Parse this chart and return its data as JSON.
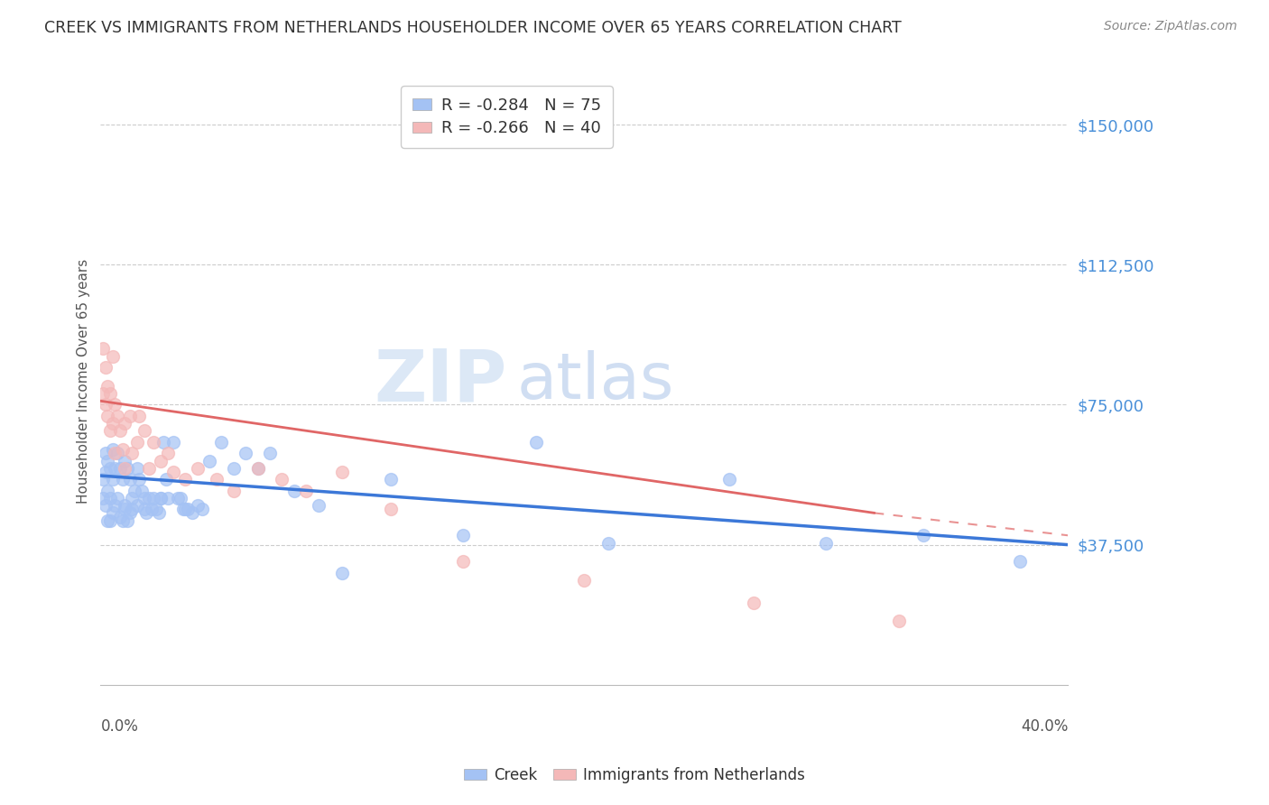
{
  "title": "CREEK VS IMMIGRANTS FROM NETHERLANDS HOUSEHOLDER INCOME OVER 65 YEARS CORRELATION CHART",
  "source": "Source: ZipAtlas.com",
  "ylabel": "Householder Income Over 65 years",
  "yticks": [
    0,
    37500,
    75000,
    112500,
    150000
  ],
  "ytick_labels": [
    "",
    "$37,500",
    "$75,000",
    "$112,500",
    "$150,000"
  ],
  "xlim": [
    0.0,
    0.4
  ],
  "ylim": [
    0,
    162500
  ],
  "legend_creek": "R = -0.284   N = 75",
  "legend_netherlands": "R = -0.266   N = 40",
  "creek_color": "#a4c2f4",
  "netherlands_color": "#f4b8b8",
  "creek_line_color": "#3c78d8",
  "netherlands_line_color": "#e06666",
  "watermark_zip": "ZIP",
  "watermark_atlas": "atlas",
  "creek_scatter_x": [
    0.001,
    0.001,
    0.002,
    0.002,
    0.002,
    0.003,
    0.003,
    0.003,
    0.004,
    0.004,
    0.004,
    0.005,
    0.005,
    0.005,
    0.006,
    0.006,
    0.007,
    0.007,
    0.008,
    0.008,
    0.009,
    0.009,
    0.01,
    0.01,
    0.011,
    0.011,
    0.012,
    0.012,
    0.013,
    0.014,
    0.015,
    0.015,
    0.016,
    0.017,
    0.018,
    0.019,
    0.02,
    0.021,
    0.022,
    0.023,
    0.024,
    0.025,
    0.026,
    0.027,
    0.028,
    0.03,
    0.032,
    0.033,
    0.034,
    0.036,
    0.038,
    0.04,
    0.042,
    0.045,
    0.05,
    0.055,
    0.06,
    0.065,
    0.07,
    0.08,
    0.09,
    0.1,
    0.12,
    0.15,
    0.18,
    0.21,
    0.26,
    0.3,
    0.34,
    0.38,
    0.01,
    0.013,
    0.018,
    0.025,
    0.035
  ],
  "creek_scatter_y": [
    55000,
    50000,
    62000,
    57000,
    48000,
    60000,
    52000,
    44000,
    58000,
    50000,
    44000,
    63000,
    55000,
    46000,
    58000,
    48000,
    62000,
    50000,
    58000,
    45000,
    55000,
    44000,
    60000,
    48000,
    58000,
    44000,
    55000,
    46000,
    50000,
    52000,
    58000,
    48000,
    55000,
    52000,
    50000,
    46000,
    50000,
    47000,
    50000,
    47000,
    46000,
    50000,
    65000,
    55000,
    50000,
    65000,
    50000,
    50000,
    47000,
    47000,
    46000,
    48000,
    47000,
    60000,
    65000,
    58000,
    62000,
    58000,
    62000,
    52000,
    48000,
    30000,
    55000,
    40000,
    65000,
    38000,
    55000,
    38000,
    40000,
    33000,
    47000,
    47000,
    47000,
    50000,
    47000
  ],
  "netherlands_scatter_x": [
    0.001,
    0.001,
    0.002,
    0.002,
    0.003,
    0.003,
    0.004,
    0.004,
    0.005,
    0.005,
    0.006,
    0.006,
    0.007,
    0.008,
    0.009,
    0.01,
    0.01,
    0.012,
    0.013,
    0.015,
    0.016,
    0.018,
    0.02,
    0.022,
    0.025,
    0.028,
    0.03,
    0.035,
    0.04,
    0.048,
    0.055,
    0.065,
    0.075,
    0.085,
    0.1,
    0.12,
    0.15,
    0.2,
    0.27,
    0.33
  ],
  "netherlands_scatter_y": [
    90000,
    78000,
    85000,
    75000,
    80000,
    72000,
    78000,
    68000,
    88000,
    70000,
    75000,
    62000,
    72000,
    68000,
    63000,
    70000,
    58000,
    72000,
    62000,
    65000,
    72000,
    68000,
    58000,
    65000,
    60000,
    62000,
    57000,
    55000,
    58000,
    55000,
    52000,
    58000,
    55000,
    52000,
    57000,
    47000,
    33000,
    28000,
    22000,
    17000
  ],
  "creek_trend_x": [
    0.0,
    0.4
  ],
  "creek_trend_y": [
    56000,
    37500
  ],
  "netherlands_trend_x": [
    0.0,
    0.32
  ],
  "netherlands_trend_y": [
    76000,
    46000
  ]
}
